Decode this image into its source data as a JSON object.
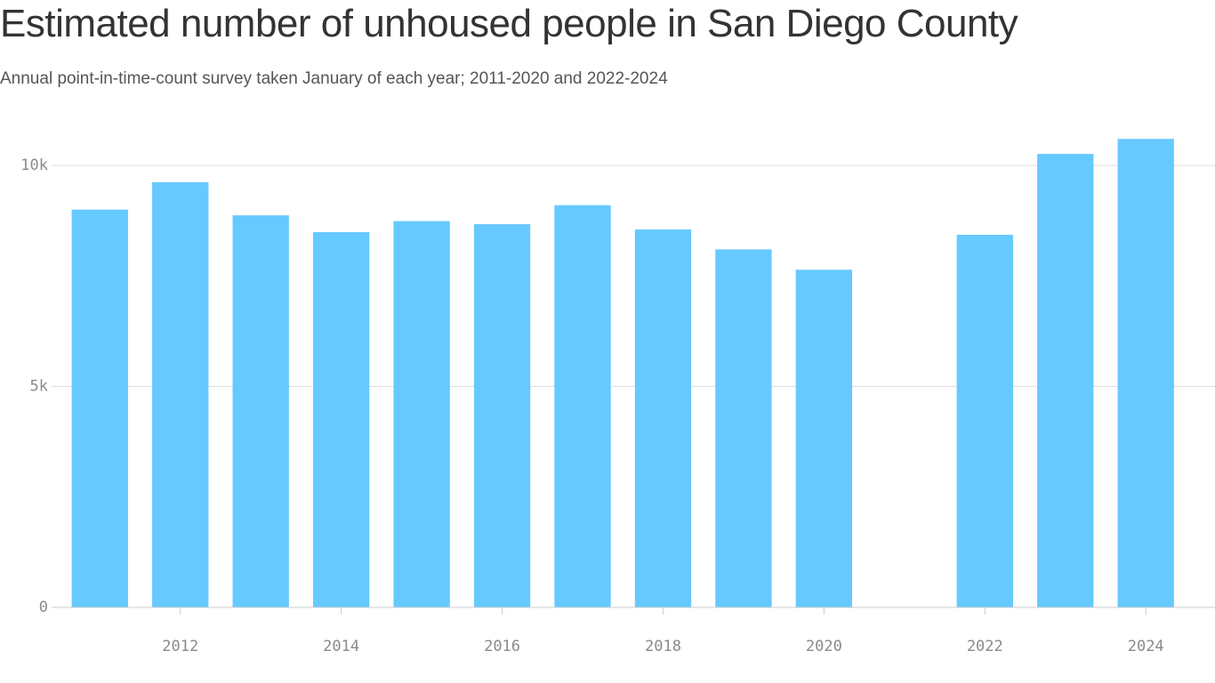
{
  "chart_data": {
    "type": "bar",
    "title": "Estimated number of unhoused people in San Diego County",
    "subtitle": "Annual point-in-time-count survey taken January of each year; 2011-2020 and 2022-2024",
    "x": [
      2011,
      2012,
      2013,
      2014,
      2015,
      2016,
      2017,
      2018,
      2019,
      2020,
      2022,
      2023,
      2024
    ],
    "values": [
      9000,
      9620,
      8870,
      8490,
      8740,
      8670,
      9100,
      8550,
      8100,
      7640,
      8430,
      10260,
      10600
    ],
    "color": "#66c9ff",
    "xlim": [
      2010.4,
      2024.86
    ],
    "xticks": [
      2012,
      2014,
      2016,
      2018,
      2020,
      2022,
      2024
    ],
    "ylim": [
      0,
      11000
    ],
    "yticks": [
      0,
      {
        "value": 5000,
        "label": "5k"
      },
      {
        "value": 10000,
        "label": "10k"
      }
    ],
    "grid": true
  }
}
